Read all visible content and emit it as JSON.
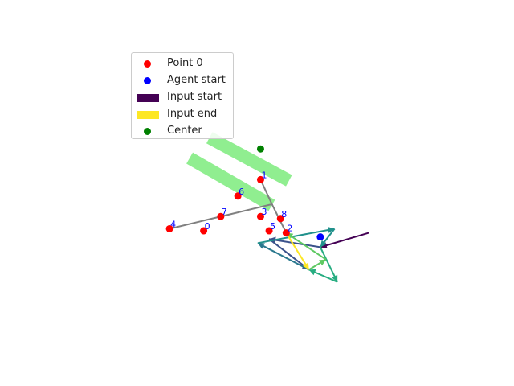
{
  "chart_data": {
    "type": "scatter",
    "axes_visible": false,
    "grid": false,
    "legend_position": "upper-left",
    "legend": [
      {
        "label": "Point 0",
        "marker": "dot",
        "color": "#ff0000"
      },
      {
        "label": "Agent start",
        "marker": "dot",
        "color": "#0000ff"
      },
      {
        "label": "Input start",
        "marker": "patch",
        "color": "#440154"
      },
      {
        "label": "Input end",
        "marker": "patch",
        "color": "#fde725"
      },
      {
        "label": "Center",
        "marker": "dot",
        "color": "#008000"
      }
    ],
    "region": {
      "color": "#90ee90",
      "shape": "T",
      "bar_a": {
        "from": [
          -0.4,
          2.4
        ],
        "to": [
          2.1,
          0.4
        ],
        "width": 0.45
      },
      "bar_b": {
        "from": [
          0.3,
          3.4
        ],
        "to": [
          2.7,
          1.6
        ],
        "width": 0.45
      }
    },
    "center": {
      "x": 1.9,
      "y": 3.0,
      "color": "#008000"
    },
    "points": [
      {
        "label": "0",
        "x": -0.1,
        "y": -1.0
      },
      {
        "label": "1",
        "x": 1.9,
        "y": 1.5
      },
      {
        "label": "2",
        "x": 2.8,
        "y": -1.1
      },
      {
        "label": "3",
        "x": 1.9,
        "y": -0.3
      },
      {
        "label": "4",
        "x": -1.3,
        "y": -0.9
      },
      {
        "label": "5",
        "x": 2.2,
        "y": -1.0
      },
      {
        "label": "6",
        "x": 1.1,
        "y": 0.7
      },
      {
        "label": "7",
        "x": 0.5,
        "y": -0.3
      },
      {
        "label": "8",
        "x": 2.6,
        "y": -0.4
      }
    ],
    "point_color": "#ff0000",
    "point_label_color": "#0000ff",
    "path": {
      "color": "#808080",
      "vertices": [
        [
          1.9,
          1.5
        ],
        [
          2.3,
          0.3
        ],
        [
          0.5,
          -0.3
        ],
        [
          -1.3,
          -0.9
        ]
      ],
      "branch": [
        [
          2.3,
          0.3
        ],
        [
          2.8,
          -1.1
        ]
      ]
    },
    "agent_start": {
      "x": 4.0,
      "y": -1.3,
      "color": "#0000ff"
    },
    "input_arrows": [
      {
        "from": [
          5.7,
          -1.1
        ],
        "to": [
          4.0,
          -1.8
        ],
        "color": "#440154"
      },
      {
        "from": [
          4.0,
          -1.8
        ],
        "to": [
          2.2,
          -1.4
        ],
        "color": "#3b528b"
      },
      {
        "from": [
          2.2,
          -1.4
        ],
        "to": [
          3.6,
          -2.9
        ],
        "color": "#3b528b"
      },
      {
        "from": [
          3.6,
          -2.9
        ],
        "to": [
          1.8,
          -1.6
        ],
        "color": "#2a788e"
      },
      {
        "from": [
          1.8,
          -1.6
        ],
        "to": [
          4.5,
          -0.9
        ],
        "color": "#21918c"
      },
      {
        "from": [
          4.5,
          -0.9
        ],
        "to": [
          4.0,
          -1.8
        ],
        "color": "#21918c"
      },
      {
        "from": [
          4.0,
          -1.8
        ],
        "to": [
          4.6,
          -3.5
        ],
        "color": "#27ad81"
      },
      {
        "from": [
          4.6,
          -3.5
        ],
        "to": [
          3.6,
          -2.9
        ],
        "color": "#27ad81"
      },
      {
        "from": [
          3.6,
          -2.9
        ],
        "to": [
          4.2,
          -2.4
        ],
        "color": "#5ec962"
      },
      {
        "from": [
          4.2,
          -2.4
        ],
        "to": [
          2.8,
          -1.1
        ],
        "color": "#5ec962"
      },
      {
        "from": [
          2.8,
          -1.1
        ],
        "to": [
          3.6,
          -2.9
        ],
        "color": "#fde725"
      }
    ],
    "xlim": [
      -5,
      9
    ],
    "ylim": [
      -6.5,
      8
    ]
  }
}
